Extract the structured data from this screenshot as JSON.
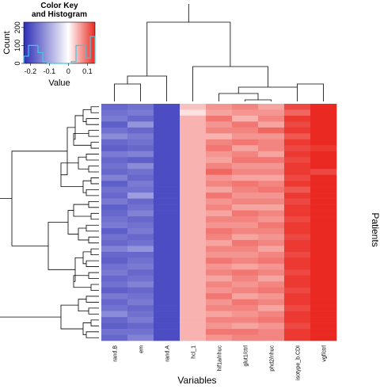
{
  "chart_data": {
    "type": "heatmap",
    "x_label": "Variables",
    "y_label": "Patients",
    "columns": [
      "rand.B",
      "em",
      "rand.A",
      "hcl_1",
      "hif1a/nhuc",
      "glut1/ctrl",
      "phd2/nhuc",
      "isotype_b.CDI",
      "vgf/ctrl"
    ],
    "color_scale": {
      "values": [
        -0.235,
        0,
        0.14
      ],
      "colors": [
        "#2e2eb8",
        "#ffffff",
        "#ea2a22"
      ]
    },
    "values": [
      [
        -0.17,
        -0.16,
        -0.2,
        0.04,
        0.07,
        0.08,
        0.06,
        0.12,
        0.14
      ],
      [
        -0.16,
        -0.15,
        -0.2,
        0.02,
        0.06,
        0.07,
        0.07,
        0.1,
        0.14
      ],
      [
        -0.15,
        -0.17,
        -0.2,
        0.05,
        0.09,
        0.05,
        0.08,
        0.13,
        0.14
      ],
      [
        -0.18,
        -0.12,
        -0.2,
        0.05,
        0.07,
        0.09,
        0.06,
        0.12,
        0.14
      ],
      [
        -0.16,
        -0.17,
        -0.2,
        0.05,
        0.08,
        0.08,
        0.1,
        0.13,
        0.14
      ],
      [
        -0.13,
        -0.15,
        -0.2,
        0.05,
        0.05,
        0.07,
        0.07,
        0.11,
        0.14
      ],
      [
        -0.17,
        -0.16,
        -0.2,
        0.05,
        0.08,
        0.09,
        0.08,
        0.13,
        0.14
      ],
      [
        -0.18,
        -0.17,
        -0.2,
        0.05,
        0.09,
        0.06,
        0.08,
        0.12,
        0.13
      ],
      [
        -0.15,
        -0.14,
        -0.2,
        0.05,
        0.07,
        0.08,
        0.06,
        0.13,
        0.14
      ],
      [
        -0.17,
        -0.18,
        -0.2,
        0.05,
        0.06,
        0.09,
        0.09,
        0.12,
        0.14
      ],
      [
        -0.16,
        -0.13,
        -0.2,
        0.05,
        0.08,
        0.07,
        0.07,
        0.13,
        0.14
      ],
      [
        -0.17,
        -0.16,
        -0.2,
        0.05,
        0.1,
        0.08,
        0.08,
        0.13,
        0.12
      ],
      [
        -0.14,
        -0.17,
        -0.2,
        0.05,
        0.07,
        0.06,
        0.06,
        0.12,
        0.14
      ],
      [
        -0.18,
        -0.15,
        -0.2,
        0.05,
        0.08,
        0.09,
        0.08,
        0.13,
        0.14
      ],
      [
        -0.16,
        -0.16,
        -0.2,
        0.05,
        0.06,
        0.08,
        0.09,
        0.11,
        0.14
      ],
      [
        -0.17,
        -0.11,
        -0.2,
        0.05,
        0.09,
        0.07,
        0.07,
        0.13,
        0.14
      ],
      [
        -0.15,
        -0.17,
        -0.2,
        0.05,
        0.07,
        0.08,
        0.08,
        0.12,
        0.14
      ],
      [
        -0.18,
        -0.16,
        -0.2,
        0.05,
        0.08,
        0.06,
        0.06,
        0.13,
        0.14
      ],
      [
        -0.17,
        -0.14,
        -0.2,
        0.05,
        0.06,
        0.09,
        0.08,
        0.13,
        0.14
      ],
      [
        -0.16,
        -0.17,
        -0.2,
        0.05,
        0.08,
        0.08,
        0.07,
        0.12,
        0.14
      ],
      [
        -0.15,
        -0.16,
        -0.2,
        0.05,
        0.07,
        0.07,
        0.09,
        0.13,
        0.14
      ],
      [
        -0.18,
        -0.15,
        -0.2,
        0.05,
        0.09,
        0.08,
        0.08,
        0.13,
        0.14
      ],
      [
        -0.16,
        -0.17,
        -0.2,
        0.05,
        0.08,
        0.06,
        0.07,
        0.12,
        0.14
      ],
      [
        -0.17,
        -0.16,
        -0.2,
        0.05,
        0.06,
        0.09,
        0.08,
        0.13,
        0.14
      ],
      [
        -0.14,
        -0.12,
        -0.2,
        0.05,
        0.08,
        0.08,
        0.06,
        0.13,
        0.14
      ],
      [
        -0.17,
        -0.17,
        -0.2,
        0.05,
        0.07,
        0.07,
        0.08,
        0.12,
        0.14
      ],
      [
        -0.18,
        -0.16,
        -0.2,
        0.05,
        0.09,
        0.08,
        0.09,
        0.13,
        0.14
      ],
      [
        -0.16,
        -0.15,
        -0.2,
        0.05,
        0.07,
        0.06,
        0.07,
        0.13,
        0.14
      ],
      [
        -0.15,
        -0.17,
        -0.2,
        0.05,
        0.08,
        0.09,
        0.08,
        0.12,
        0.14
      ],
      [
        -0.17,
        -0.16,
        -0.2,
        0.05,
        0.06,
        0.08,
        0.06,
        0.13,
        0.14
      ],
      [
        -0.16,
        -0.14,
        -0.2,
        0.05,
        0.08,
        0.07,
        0.08,
        0.13,
        0.14
      ],
      [
        -0.18,
        -0.17,
        -0.2,
        0.05,
        0.07,
        0.08,
        0.09,
        0.12,
        0.14
      ],
      [
        -0.15,
        -0.16,
        -0.2,
        0.05,
        0.09,
        0.06,
        0.07,
        0.13,
        0.14
      ],
      [
        -0.17,
        -0.15,
        -0.2,
        0.05,
        0.07,
        0.09,
        0.08,
        0.13,
        0.14
      ],
      [
        -0.16,
        -0.17,
        -0.2,
        0.05,
        0.08,
        0.08,
        0.06,
        0.12,
        0.14
      ],
      [
        -0.13,
        -0.16,
        -0.2,
        0.05,
        0.06,
        0.07,
        0.08,
        0.13,
        0.14
      ],
      [
        -0.17,
        -0.15,
        -0.2,
        0.05,
        0.08,
        0.08,
        0.09,
        0.13,
        0.14
      ],
      [
        -0.18,
        -0.17,
        -0.2,
        0.05,
        0.07,
        0.06,
        0.07,
        0.12,
        0.14
      ],
      [
        -0.16,
        -0.16,
        -0.2,
        0.05,
        0.09,
        0.09,
        0.08,
        0.13,
        0.14
      ],
      [
        -0.17,
        -0.14,
        -0.2,
        0.05,
        0.07,
        0.08,
        0.08,
        0.13,
        0.14
      ]
    ],
    "key": {
      "title_lines": [
        "Color Key",
        "and Histogram"
      ],
      "x_label": "Value",
      "y_label": "Count",
      "xlim": [
        -0.235,
        0.14
      ],
      "xticks": [
        -0.2,
        -0.1,
        0,
        0.1
      ],
      "ylim": [
        0,
        230
      ],
      "yticks": [
        0,
        100,
        200
      ],
      "hist_color": "#40c8e0",
      "bins": [
        -0.235,
        -0.21,
        -0.185,
        -0.16,
        -0.135,
        -0.11,
        -0.085,
        -0.06,
        -0.035,
        -0.01,
        0.015,
        0.04,
        0.065,
        0.09,
        0.115,
        0.14
      ],
      "counts": [
        40,
        100,
        100,
        60,
        10,
        0,
        0,
        0,
        0,
        0,
        10,
        100,
        100,
        30,
        150
      ]
    }
  }
}
